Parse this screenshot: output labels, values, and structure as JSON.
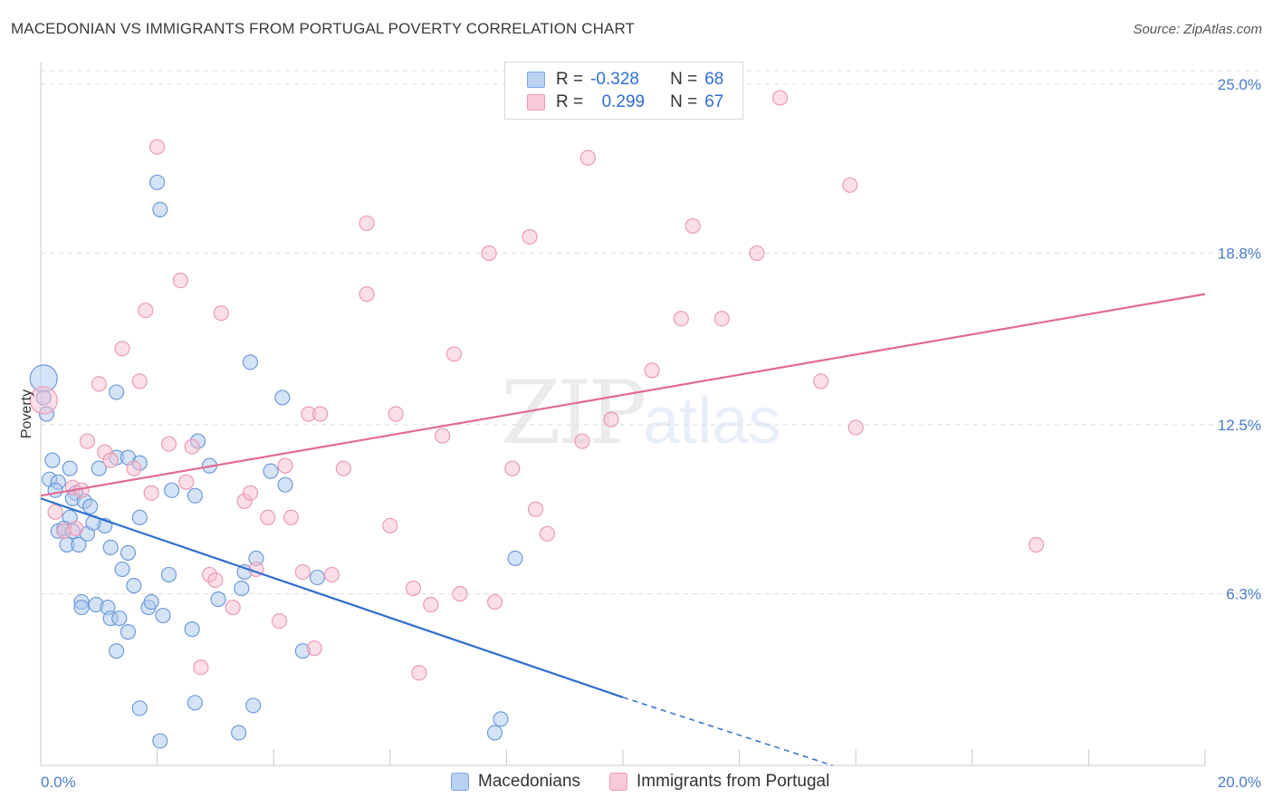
{
  "header": {
    "title": "MACEDONIAN VS IMMIGRANTS FROM PORTUGAL POVERTY CORRELATION CHART",
    "source": "Source: ZipAtlas.com"
  },
  "watermark": {
    "zip": "ZIP",
    "atlas": "atlas"
  },
  "legend": {
    "macedonians": {
      "r_label": "R =",
      "r_value": "-0.328",
      "n_label": "N =",
      "n_value": "68"
    },
    "portugal": {
      "r_label": "R =",
      "r_value": "0.299",
      "n_label": "N =",
      "n_value": "67"
    }
  },
  "bottom_legend": {
    "macedonians": "Macedonians",
    "portugal": "Immigrants from Portugal"
  },
  "colors": {
    "blue": "#2f6fce",
    "blue_fill": "#a9c7ee",
    "blue_stroke": "#6f9bd9",
    "pink": "#e06a93",
    "pink_fill": "#f5bfd0",
    "pink_stroke": "#ec9ab5",
    "grid": "#dddddd",
    "tick_text": "#4a7cc9"
  },
  "chart_data": {
    "type": "scatter",
    "title": "MACEDONIAN VS IMMIGRANTS FROM PORTUGAL POVERTY CORRELATION CHART",
    "xlabel": "",
    "ylabel": "Poverty",
    "xlim": [
      0,
      20
    ],
    "ylim": [
      0,
      25.5
    ],
    "x_tick_labels": {
      "min": "0.0%",
      "max": "20.0%"
    },
    "y_ticks": [
      {
        "value": 6.3,
        "label": "6.3%"
      },
      {
        "value": 12.5,
        "label": "12.5%"
      },
      {
        "value": 18.8,
        "label": "18.8%"
      },
      {
        "value": 25.0,
        "label": "25.0%"
      }
    ],
    "series": [
      {
        "name": "Macedonians",
        "r": -0.328,
        "n": 68,
        "trend": {
          "x0": 0,
          "y0": 9.8,
          "x1": 10,
          "y1": 2.5,
          "dash_to_x": 13.6,
          "dash_to_y": 0
        },
        "points": [
          [
            0.05,
            14.2,
            true
          ],
          [
            0.05,
            13.5,
            false
          ],
          [
            0.1,
            12.9,
            false
          ],
          [
            0.2,
            11.2,
            false
          ],
          [
            0.15,
            10.5,
            false
          ],
          [
            0.3,
            10.4,
            false
          ],
          [
            0.25,
            10.1,
            false
          ],
          [
            0.5,
            10.9,
            false
          ],
          [
            0.6,
            10.0,
            false
          ],
          [
            0.55,
            9.8,
            false
          ],
          [
            0.75,
            9.7,
            false
          ],
          [
            0.85,
            9.5,
            false
          ],
          [
            0.5,
            9.1,
            false
          ],
          [
            0.3,
            8.6,
            false
          ],
          [
            0.4,
            8.7,
            false
          ],
          [
            0.55,
            8.6,
            false
          ],
          [
            0.8,
            8.5,
            false
          ],
          [
            0.45,
            8.1,
            false
          ],
          [
            0.65,
            8.1,
            false
          ],
          [
            1.1,
            8.8,
            false
          ],
          [
            0.9,
            8.9,
            false
          ],
          [
            1.2,
            8.0,
            false
          ],
          [
            1.5,
            7.8,
            false
          ],
          [
            1.4,
            7.2,
            false
          ],
          [
            1.6,
            6.6,
            false
          ],
          [
            1.7,
            9.1,
            false
          ],
          [
            1.3,
            11.3,
            false
          ],
          [
            1.5,
            11.3,
            false
          ],
          [
            1.7,
            11.1,
            false
          ],
          [
            1.0,
            10.9,
            false
          ],
          [
            0.7,
            6.0,
            false
          ],
          [
            0.7,
            5.8,
            false
          ],
          [
            0.95,
            5.9,
            false
          ],
          [
            1.15,
            5.8,
            false
          ],
          [
            1.2,
            5.4,
            false
          ],
          [
            1.35,
            5.4,
            false
          ],
          [
            1.5,
            4.9,
            false
          ],
          [
            1.3,
            4.2,
            false
          ],
          [
            1.85,
            5.8,
            false
          ],
          [
            1.9,
            6.0,
            false
          ],
          [
            2.1,
            5.5,
            false
          ],
          [
            2.2,
            7.0,
            false
          ],
          [
            2.6,
            5.0,
            false
          ],
          [
            2.65,
            9.9,
            false
          ],
          [
            2.25,
            10.1,
            false
          ],
          [
            2.7,
            11.9,
            false
          ],
          [
            2.9,
            11.0,
            false
          ],
          [
            3.05,
            6.1,
            false
          ],
          [
            3.45,
            6.5,
            false
          ],
          [
            3.5,
            7.1,
            false
          ],
          [
            3.7,
            7.6,
            false
          ],
          [
            3.6,
            14.8,
            false
          ],
          [
            3.95,
            10.8,
            false
          ],
          [
            4.2,
            10.3,
            false
          ],
          [
            4.15,
            13.5,
            false
          ],
          [
            2.0,
            21.4,
            false
          ],
          [
            2.05,
            20.4,
            false
          ],
          [
            1.3,
            13.7,
            false
          ],
          [
            4.75,
            6.9,
            false
          ],
          [
            4.5,
            4.2,
            false
          ],
          [
            2.65,
            2.3,
            false
          ],
          [
            3.65,
            2.2,
            false
          ],
          [
            1.7,
            2.1,
            false
          ],
          [
            3.4,
            1.2,
            false
          ],
          [
            2.05,
            0.9,
            false
          ],
          [
            7.9,
            1.7,
            false
          ],
          [
            7.8,
            1.2,
            false
          ],
          [
            8.15,
            7.6,
            false
          ]
        ]
      },
      {
        "name": "Immigrants from Portugal",
        "r": 0.299,
        "n": 67,
        "trend": {
          "x0": 0,
          "y0": 9.9,
          "x1": 20,
          "y1": 17.3
        },
        "points": [
          [
            0.05,
            13.4,
            true
          ],
          [
            0.25,
            9.3,
            false
          ],
          [
            0.4,
            8.6,
            false
          ],
          [
            0.6,
            8.7,
            false
          ],
          [
            0.55,
            10.2,
            false
          ],
          [
            0.7,
            10.1,
            false
          ],
          [
            0.8,
            11.9,
            false
          ],
          [
            1.0,
            14.0,
            false
          ],
          [
            1.1,
            11.5,
            false
          ],
          [
            1.2,
            11.2,
            false
          ],
          [
            1.4,
            15.3,
            false
          ],
          [
            1.6,
            10.9,
            false
          ],
          [
            1.7,
            14.1,
            false
          ],
          [
            1.8,
            16.7,
            false
          ],
          [
            1.9,
            10.0,
            false
          ],
          [
            2.0,
            22.7,
            false
          ],
          [
            2.2,
            11.8,
            false
          ],
          [
            2.4,
            17.8,
            false
          ],
          [
            2.5,
            10.4,
            false
          ],
          [
            2.6,
            11.7,
            false
          ],
          [
            2.9,
            7.0,
            false
          ],
          [
            3.0,
            6.8,
            false
          ],
          [
            2.75,
            3.6,
            false
          ],
          [
            3.1,
            16.6,
            false
          ],
          [
            3.3,
            5.8,
            false
          ],
          [
            3.5,
            9.7,
            false
          ],
          [
            3.6,
            10.0,
            false
          ],
          [
            3.7,
            7.2,
            false
          ],
          [
            3.9,
            9.1,
            false
          ],
          [
            4.1,
            5.3,
            false
          ],
          [
            4.2,
            11.0,
            false
          ],
          [
            4.3,
            9.1,
            false
          ],
          [
            4.5,
            7.1,
            false
          ],
          [
            4.6,
            12.9,
            false
          ],
          [
            4.7,
            4.3,
            false
          ],
          [
            4.8,
            12.9,
            false
          ],
          [
            5.0,
            7.0,
            false
          ],
          [
            5.2,
            10.9,
            false
          ],
          [
            5.6,
            17.3,
            false
          ],
          [
            5.6,
            19.9,
            false
          ],
          [
            6.0,
            8.8,
            false
          ],
          [
            6.1,
            12.9,
            false
          ],
          [
            6.4,
            6.5,
            false
          ],
          [
            6.5,
            3.4,
            false
          ],
          [
            6.7,
            5.9,
            false
          ],
          [
            6.9,
            12.1,
            false
          ],
          [
            7.1,
            15.1,
            false
          ],
          [
            7.2,
            6.3,
            false
          ],
          [
            7.7,
            18.8,
            false
          ],
          [
            7.8,
            6.0,
            false
          ],
          [
            8.1,
            10.9,
            false
          ],
          [
            8.4,
            19.4,
            false
          ],
          [
            8.5,
            9.4,
            false
          ],
          [
            8.7,
            8.5,
            false
          ],
          [
            9.3,
            11.9,
            false
          ],
          [
            9.4,
            22.3,
            false
          ],
          [
            9.8,
            12.7,
            false
          ],
          [
            10.5,
            14.5,
            false
          ],
          [
            11.0,
            16.4,
            false
          ],
          [
            11.2,
            19.8,
            false
          ],
          [
            11.7,
            16.4,
            false
          ],
          [
            12.3,
            18.8,
            false
          ],
          [
            12.7,
            24.5,
            false
          ],
          [
            13.4,
            14.1,
            false
          ],
          [
            13.9,
            21.3,
            false
          ],
          [
            14.0,
            12.4,
            false
          ],
          [
            17.1,
            8.1,
            false
          ]
        ]
      }
    ]
  }
}
